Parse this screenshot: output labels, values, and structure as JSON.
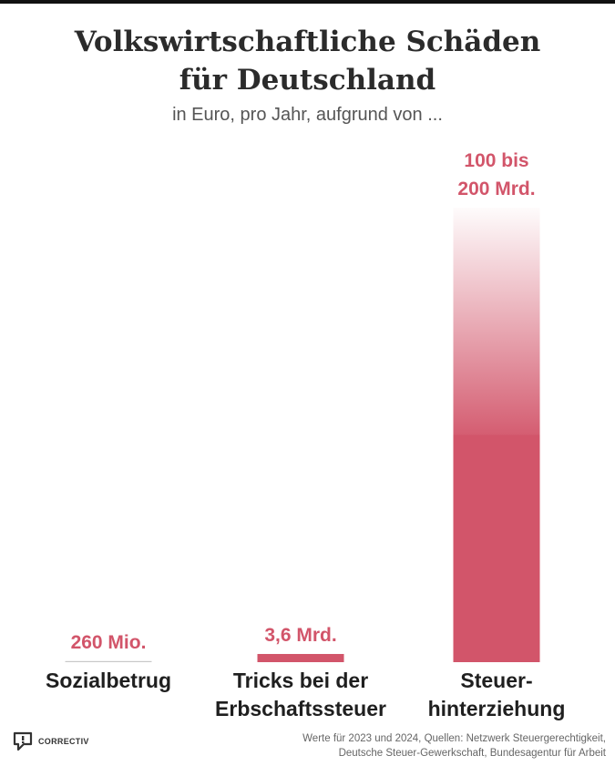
{
  "title_line1": "Volkswirtschaftliche Schäden",
  "title_line2": "für Deutschland",
  "subtitle": "in Euro, pro Jahr, aufgrund von ...",
  "source_line1": "Werte für 2023 und 2024, Quellen: Netzwerk Steuergerechtigkeit,",
  "source_line2": "Deutsche Steuer-Gewerkschaft, Bundesagentur für Arbeit",
  "logo_text": "CORRECTIV",
  "colors": {
    "bar": "#d2556a",
    "bar_light": "#f2c4cc",
    "minor_line": "#c8c8c8"
  },
  "chart_data": {
    "type": "bar",
    "categories": [
      {
        "lines": [
          "Sozialbetrug"
        ]
      },
      {
        "lines": [
          "Tricks bei der",
          "Erbschaftssteuer"
        ]
      },
      {
        "lines": [
          "Steuer-",
          "hinterziehung"
        ]
      }
    ],
    "values_bn_eur": [
      0.26,
      3.6,
      [
        100,
        200
      ]
    ],
    "value_labels": [
      {
        "lines": [
          "260 Mio."
        ]
      },
      {
        "lines": [
          "3,6 Mrd."
        ]
      },
      {
        "lines": [
          "100 bis",
          "200 Mrd."
        ]
      }
    ],
    "ylim": [
      0,
      200
    ]
  }
}
